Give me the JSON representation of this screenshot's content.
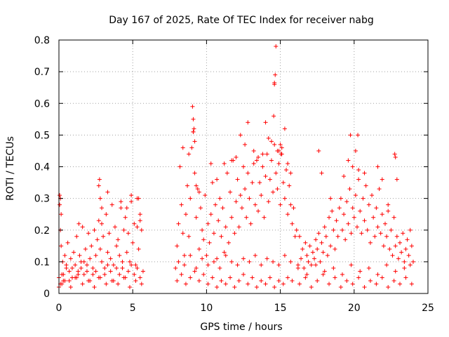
{
  "chart_data": {
    "type": "scatter",
    "title": "Day 167 of 2025, Rate Of TEC Index for receiver nabg",
    "xlabel": "GPS time / hours",
    "ylabel": "ROTI / TECUs",
    "xlim": [
      0,
      25
    ],
    "ylim": [
      0,
      0.8
    ],
    "xticks": [
      0,
      5,
      10,
      15,
      20,
      25
    ],
    "xtick_labels": [
      "0",
      "5",
      "10",
      "15",
      "20",
      "25"
    ],
    "yticks": [
      0,
      0.1,
      0.2,
      0.3,
      0.4,
      0.5,
      0.6,
      0.7,
      0.8
    ],
    "ytick_labels": [
      "0",
      "0.1",
      "0.2",
      "0.3",
      "0.4",
      "0.5",
      "0.6",
      "0.7",
      "0.8"
    ],
    "grid": true,
    "marker": "+",
    "marker_color": "#ff0000",
    "series": [
      {
        "x": [
          0.0,
          0.05,
          0.1,
          0.15,
          0.2,
          0.25,
          0.3,
          0.4,
          0.5,
          0.6,
          0.7,
          0.8,
          0.9,
          1.0,
          1.1,
          1.2,
          1.3,
          1.4,
          1.5,
          1.6,
          1.7,
          1.8,
          1.9,
          2.0,
          2.1,
          2.2,
          2.3,
          2.4,
          2.5,
          2.6,
          2.7,
          2.75,
          2.8,
          2.9,
          3.0,
          3.1,
          3.2,
          3.3,
          3.4,
          3.5,
          3.6,
          3.7,
          3.8,
          3.9,
          4.0,
          4.1,
          4.2,
          4.3,
          4.4,
          4.5,
          4.6,
          4.7,
          4.8,
          4.9,
          5.0,
          5.1,
          5.2,
          5.3,
          5.4,
          5.5,
          5.6,
          5.7,
          0.1,
          0.3,
          0.5,
          0.7,
          0.9,
          1.1,
          1.3,
          1.5,
          1.7,
          1.9,
          2.1,
          2.3,
          2.5,
          2.7,
          2.9,
          3.1,
          3.3,
          3.5,
          3.7,
          3.9,
          4.1,
          4.3,
          4.5,
          4.7,
          4.9,
          5.1,
          5.3,
          5.5,
          0.0,
          0.2,
          0.4,
          0.8,
          1.2,
          1.6,
          2.0,
          2.4,
          2.8,
          3.2,
          3.6,
          4.0,
          4.4,
          4.8,
          5.2,
          5.6,
          0.05,
          0.15,
          1.35,
          2.7,
          2.8,
          3.3,
          4.2,
          4.9,
          5.3,
          5.5,
          0.1,
          2.9,
          4.6,
          5.4,
          7.9,
          8.0,
          8.1,
          8.2,
          8.3,
          8.4,
          8.5,
          8.6,
          8.7,
          8.8,
          8.9,
          9.0,
          9.1,
          9.2,
          9.3,
          9.4,
          9.5,
          9.6,
          9.7,
          9.8,
          9.9,
          10.0,
          10.1,
          10.2,
          10.3,
          10.4,
          10.5,
          10.6,
          10.7,
          10.8,
          10.9,
          11.0,
          11.1,
          11.2,
          11.3,
          11.4,
          11.5,
          11.6,
          11.7,
          11.8,
          11.9,
          12.0,
          12.1,
          12.2,
          12.3,
          12.4,
          12.5,
          12.6,
          12.7,
          12.8,
          12.9,
          13.0,
          13.1,
          13.2,
          13.3,
          13.4,
          13.5,
          13.6,
          13.7,
          13.8,
          13.9,
          14.0,
          14.1,
          14.2,
          14.3,
          14.4,
          14.5,
          14.6,
          14.7,
          14.8,
          14.9,
          15.0,
          15.1,
          15.2,
          15.3,
          15.4,
          15.5,
          15.6,
          15.7,
          15.8,
          15.9,
          16.0,
          8.0,
          8.3,
          8.6,
          8.9,
          9.2,
          9.5,
          9.8,
          10.1,
          10.4,
          10.7,
          11.0,
          11.3,
          11.6,
          11.9,
          12.2,
          12.5,
          12.8,
          13.1,
          13.4,
          13.7,
          14.0,
          14.3,
          14.6,
          14.9,
          15.2,
          15.5,
          15.8,
          8.1,
          8.5,
          8.9,
          9.3,
          9.7,
          10.1,
          10.5,
          10.9,
          11.3,
          11.7,
          12.1,
          12.5,
          12.9,
          13.3,
          13.7,
          14.1,
          14.5,
          14.9,
          15.3,
          15.7,
          8.4,
          8.8,
          9.05,
          9.1,
          9.1,
          9.15,
          9.2,
          9.3,
          9.5,
          10.3,
          10.7,
          11.2,
          11.7,
          12.0,
          12.3,
          12.6,
          12.8,
          13.2,
          13.5,
          13.8,
          14.0,
          14.2,
          14.4,
          14.55,
          14.6,
          14.6,
          14.65,
          14.7,
          14.8,
          14.9,
          15.0,
          15.05,
          15.1,
          15.3,
          15.5,
          15.7,
          16.1,
          16.2,
          16.3,
          16.4,
          16.5,
          16.6,
          16.7,
          16.8,
          16.9,
          17.0,
          17.1,
          17.2,
          17.3,
          17.4,
          17.5,
          17.6,
          17.7,
          17.8,
          17.9,
          18.0,
          18.1,
          18.2,
          18.3,
          18.4,
          18.5,
          18.6,
          18.7,
          18.8,
          18.9,
          19.0,
          19.1,
          19.2,
          19.3,
          19.4,
          19.5,
          19.6,
          19.7,
          19.8,
          19.9,
          20.0,
          20.1,
          20.2,
          20.3,
          20.4,
          20.5,
          20.6,
          20.7,
          20.8,
          20.9,
          21.0,
          21.1,
          21.2,
          21.3,
          21.4,
          21.5,
          21.6,
          21.7,
          21.8,
          21.9,
          22.0,
          22.1,
          22.2,
          22.3,
          22.4,
          22.5,
          22.6,
          22.7,
          22.8,
          22.9,
          23.0,
          23.1,
          23.2,
          23.3,
          23.4,
          23.5,
          23.6,
          23.7,
          23.8,
          23.9,
          24.0,
          16.3,
          16.7,
          17.1,
          17.5,
          17.9,
          18.3,
          18.7,
          19.1,
          19.5,
          19.9,
          20.3,
          20.7,
          21.1,
          21.5,
          21.9,
          22.3,
          22.7,
          23.1,
          23.5,
          23.9,
          16.2,
          16.8,
          17.4,
          18.0,
          18.6,
          19.2,
          19.8,
          20.4,
          21.0,
          21.6,
          22.2,
          22.8,
          23.4,
          17.6,
          17.8,
          18.4,
          19.3,
          19.6,
          19.75,
          19.9,
          20.1,
          20.25,
          20.3,
          20.7,
          21.6,
          21.9,
          22.3,
          22.75,
          22.8,
          22.9,
          23.8
        ],
        "y": [
          0.05,
          0.28,
          0.3,
          0.15,
          0.06,
          0.1,
          0.04,
          0.12,
          0.08,
          0.16,
          0.07,
          0.11,
          0.05,
          0.13,
          0.09,
          0.18,
          0.06,
          0.12,
          0.08,
          0.21,
          0.1,
          0.14,
          0.07,
          0.19,
          0.11,
          0.15,
          0.06,
          0.2,
          0.12,
          0.17,
          0.23,
          0.36,
          0.14,
          0.22,
          0.18,
          0.08,
          0.25,
          0.13,
          0.19,
          0.11,
          0.28,
          0.09,
          0.21,
          0.15,
          0.17,
          0.12,
          0.27,
          0.08,
          0.2,
          0.24,
          0.13,
          0.19,
          0.1,
          0.29,
          0.16,
          0.22,
          0.09,
          0.21,
          0.14,
          0.25,
          0.2,
          0.07,
          0.03,
          0.06,
          0.09,
          0.04,
          0.08,
          0.05,
          0.07,
          0.1,
          0.06,
          0.09,
          0.04,
          0.08,
          0.07,
          0.05,
          0.1,
          0.06,
          0.09,
          0.07,
          0.04,
          0.08,
          0.06,
          0.1,
          0.05,
          0.07,
          0.09,
          0.06,
          0.08,
          0.05,
          0.02,
          0.03,
          0.04,
          0.02,
          0.05,
          0.03,
          0.04,
          0.02,
          0.05,
          0.03,
          0.04,
          0.03,
          0.05,
          0.02,
          0.04,
          0.03,
          0.31,
          0.25,
          0.22,
          0.34,
          0.3,
          0.32,
          0.29,
          0.31,
          0.3,
          0.23,
          0.2,
          0.27,
          0.27,
          0.3,
          0.08,
          0.15,
          0.22,
          0.4,
          0.28,
          0.19,
          0.12,
          0.25,
          0.34,
          0.18,
          0.3,
          0.46,
          0.51,
          0.38,
          0.24,
          0.33,
          0.14,
          0.27,
          0.2,
          0.17,
          0.31,
          0.12,
          0.22,
          0.16,
          0.25,
          0.35,
          0.19,
          0.28,
          0.11,
          0.23,
          0.3,
          0.18,
          0.27,
          0.13,
          0.21,
          0.38,
          0.16,
          0.32,
          0.24,
          0.42,
          0.19,
          0.29,
          0.36,
          0.21,
          0.31,
          0.27,
          0.4,
          0.33,
          0.24,
          0.38,
          0.3,
          0.22,
          0.35,
          0.45,
          0.28,
          0.42,
          0.26,
          0.35,
          0.31,
          0.4,
          0.24,
          0.37,
          0.44,
          0.29,
          0.36,
          0.42,
          0.32,
          0.47,
          0.38,
          0.33,
          0.41,
          0.28,
          0.44,
          0.35,
          0.3,
          0.39,
          0.25,
          0.34,
          0.28,
          0.22,
          0.27,
          0.18,
          0.04,
          0.06,
          0.03,
          0.05,
          0.07,
          0.04,
          0.06,
          0.03,
          0.05,
          0.02,
          0.04,
          0.03,
          0.05,
          0.02,
          0.04,
          0.06,
          0.03,
          0.05,
          0.02,
          0.04,
          0.03,
          0.05,
          0.02,
          0.04,
          0.03,
          0.05,
          0.04,
          0.1,
          0.09,
          0.12,
          0.08,
          0.11,
          0.09,
          0.1,
          0.08,
          0.12,
          0.1,
          0.09,
          0.11,
          0.1,
          0.12,
          0.09,
          0.11,
          0.1,
          0.09,
          0.12,
          0.1,
          0.46,
          0.44,
          0.59,
          0.55,
          0.51,
          0.52,
          0.48,
          0.34,
          0.32,
          0.41,
          0.36,
          0.41,
          0.42,
          0.43,
          0.5,
          0.47,
          0.54,
          0.41,
          0.43,
          0.44,
          0.54,
          0.49,
          0.48,
          0.56,
          0.66,
          0.665,
          0.69,
          0.78,
          0.45,
          0.45,
          0.47,
          0.44,
          0.46,
          0.52,
          0.41,
          0.38,
          0.2,
          0.09,
          0.18,
          0.11,
          0.14,
          0.08,
          0.16,
          0.12,
          0.1,
          0.15,
          0.09,
          0.13,
          0.11,
          0.17,
          0.14,
          0.19,
          0.1,
          0.16,
          0.13,
          0.21,
          0.18,
          0.12,
          0.24,
          0.15,
          0.26,
          0.2,
          0.14,
          0.23,
          0.18,
          0.27,
          0.3,
          0.2,
          0.25,
          0.17,
          0.29,
          0.22,
          0.33,
          0.19,
          0.27,
          0.24,
          0.31,
          0.21,
          0.36,
          0.26,
          0.19,
          0.3,
          0.23,
          0.34,
          0.2,
          0.28,
          0.16,
          0.31,
          0.24,
          0.18,
          0.27,
          0.21,
          0.33,
          0.19,
          0.25,
          0.15,
          0.22,
          0.18,
          0.26,
          0.14,
          0.2,
          0.12,
          0.24,
          0.15,
          0.18,
          0.11,
          0.16,
          0.13,
          0.19,
          0.1,
          0.14,
          0.17,
          0.12,
          0.09,
          0.15,
          0.1,
          0.03,
          0.05,
          0.02,
          0.04,
          0.06,
          0.03,
          0.05,
          0.02,
          0.04,
          0.03,
          0.05,
          0.02,
          0.04,
          0.03,
          0.05,
          0.02,
          0.04,
          0.03,
          0.05,
          0.03,
          0.08,
          0.06,
          0.09,
          0.07,
          0.08,
          0.06,
          0.09,
          0.07,
          0.08,
          0.06,
          0.09,
          0.07,
          0.08,
          0.45,
          0.38,
          0.3,
          0.37,
          0.42,
          0.5,
          0.4,
          0.45,
          0.5,
          0.39,
          0.38,
          0.4,
          0.36,
          0.28,
          0.44,
          0.43,
          0.36,
          0.2
        ]
      }
    ]
  }
}
